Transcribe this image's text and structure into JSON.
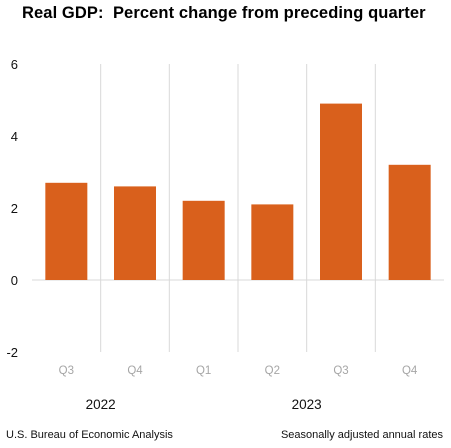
{
  "chart_data": {
    "type": "bar",
    "title": "Real GDP:  Percent change from preceding quarter",
    "categories": [
      "Q3",
      "Q4",
      "Q1",
      "Q2",
      "Q3",
      "Q4"
    ],
    "values": [
      2.7,
      2.6,
      2.2,
      2.1,
      4.9,
      3.2
    ],
    "years": [
      {
        "label": "2022",
        "categories": [
          0,
          1
        ]
      },
      {
        "label": "2023",
        "categories": [
          2,
          5
        ]
      }
    ],
    "ylim": [
      -2,
      6
    ],
    "yticks": [
      "-2",
      "0",
      "2",
      "4",
      "6"
    ],
    "grid": "vertical separators",
    "bar_color": "#D9601C"
  },
  "footer": {
    "source": "U.S. Bureau of Economic Analysis",
    "note": "Seasonally adjusted annual rates"
  }
}
